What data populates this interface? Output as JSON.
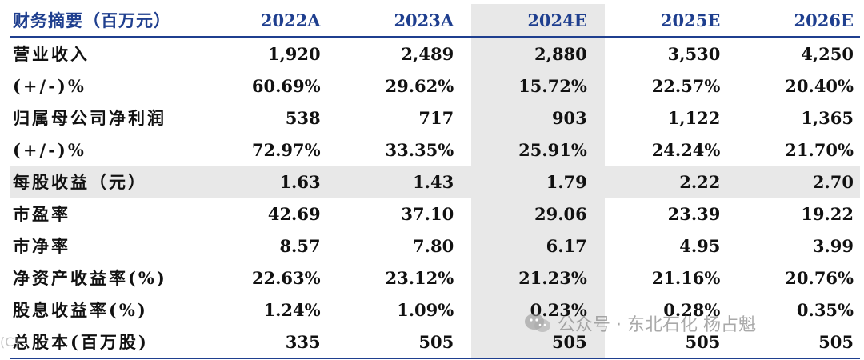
{
  "header": {
    "title": "财务摘要（百万元）",
    "years": [
      "2022A",
      "2023A",
      "2024E",
      "2025E",
      "2026E"
    ]
  },
  "rows": [
    {
      "label": "营业收入",
      "values": [
        "1,920",
        "2,489",
        "2,880",
        "3,530",
        "4,250"
      ]
    },
    {
      "label": "(+/-)%",
      "values": [
        "60.69%",
        "29.62%",
        "15.72%",
        "22.57%",
        "20.40%"
      ]
    },
    {
      "label": "归属母公司净利润",
      "values": [
        "538",
        "717",
        "903",
        "1,122",
        "1,365"
      ]
    },
    {
      "label": "(+/-)%",
      "values": [
        "72.97%",
        "33.35%",
        "25.91%",
        "24.24%",
        "21.70%"
      ]
    },
    {
      "label": "每股收益（元）",
      "values": [
        "1.63",
        "1.43",
        "1.79",
        "2.22",
        "2.70"
      ]
    },
    {
      "label": "市盈率",
      "values": [
        "42.69",
        "37.10",
        "29.06",
        "23.39",
        "19.22"
      ]
    },
    {
      "label": "市净率",
      "values": [
        "8.57",
        "7.80",
        "6.17",
        "4.95",
        "3.99"
      ]
    },
    {
      "label": "净资产收益率(%)",
      "values": [
        "22.63%",
        "23.12%",
        "21.23%",
        "21.16%",
        "20.76%"
      ]
    },
    {
      "label": "股息收益率(%)",
      "values": [
        "1.24%",
        "1.09%",
        "0.23%",
        "0.28%",
        "0.35%"
      ]
    },
    {
      "label": "总股本(百万股)",
      "values": [
        "335",
        "505",
        "505",
        "505",
        "505"
      ]
    }
  ],
  "watermark": {
    "text": "公众号 · 东北石化 杨占魁",
    "left_text": "(C)",
    "icon": "wechat-icon"
  },
  "colors": {
    "header_text": "#1f3f8f",
    "rule": "#1f3f8f",
    "shade": "#e8e8e8"
  }
}
